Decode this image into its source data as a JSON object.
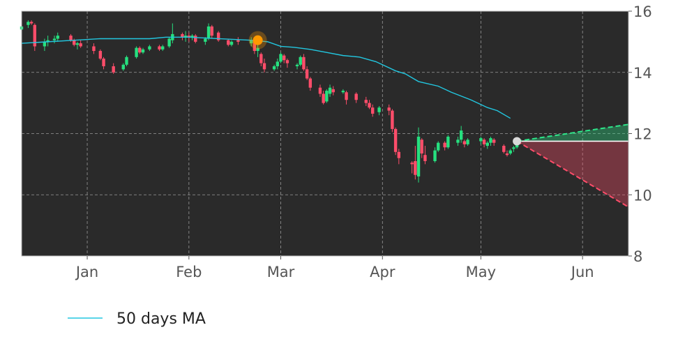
{
  "chart_data": {
    "type": "candlestick",
    "x_axis": {
      "type": "date",
      "ticks": [
        {
          "date": "2023-01-01",
          "label": "Jan"
        },
        {
          "date": "2023-02-01",
          "label": "Feb"
        },
        {
          "date": "2023-03-01",
          "label": "Mar"
        },
        {
          "date": "2023-04-01",
          "label": "Apr"
        },
        {
          "date": "2023-05-01",
          "label": "May"
        },
        {
          "date": "2023-06-01",
          "label": "Jun"
        }
      ],
      "range": [
        "2022-12-12",
        "2023-06-15"
      ]
    },
    "y_axis": {
      "position": "right",
      "range": [
        8,
        16
      ],
      "ticks": [
        8,
        10,
        12,
        14,
        16
      ]
    },
    "grid": true,
    "colors": {
      "background": "#2a2a2a",
      "up": "#26e07f",
      "down": "#ff4d6a",
      "ma_line": "#22c7e0",
      "grid": "#9a9a9a",
      "marker": "#ff9900",
      "last_point": "#d9d9d9",
      "forecast_up": "#2ee68a",
      "forecast_down": "#ff4d6a",
      "flat_line": "#ffffff"
    },
    "candles": [
      [
        "2022-12-12",
        15.4,
        15.55,
        15.35,
        15.5
      ],
      [
        "2022-12-14",
        15.55,
        15.7,
        15.45,
        15.65
      ],
      [
        "2022-12-15",
        15.65,
        15.7,
        15.55,
        15.6
      ],
      [
        "2022-12-16",
        15.55,
        15.6,
        14.7,
        14.85
      ],
      [
        "2022-12-19",
        14.85,
        15.1,
        14.7,
        15.0
      ],
      [
        "2022-12-20",
        15.0,
        15.2,
        14.85,
        15.05
      ],
      [
        "2022-12-22",
        15.05,
        15.2,
        14.95,
        15.1
      ],
      [
        "2022-12-23",
        15.1,
        15.3,
        15.0,
        15.2
      ],
      [
        "2022-12-27",
        15.2,
        15.25,
        15.0,
        15.05
      ],
      [
        "2022-12-28",
        15.05,
        15.1,
        14.85,
        14.9
      ],
      [
        "2022-12-29",
        14.9,
        15.0,
        14.75,
        14.95
      ],
      [
        "2022-12-30",
        14.95,
        15.05,
        14.8,
        14.85
      ],
      [
        "2023-01-03",
        14.85,
        14.95,
        14.6,
        14.7
      ],
      [
        "2023-01-05",
        14.7,
        14.75,
        14.4,
        14.45
      ],
      [
        "2023-01-06",
        14.45,
        14.5,
        14.1,
        14.2
      ],
      [
        "2023-01-09",
        14.2,
        14.3,
        13.95,
        14.0
      ],
      [
        "2023-01-12",
        14.1,
        14.3,
        14.05,
        14.25
      ],
      [
        "2023-01-13",
        14.25,
        14.55,
        14.2,
        14.5
      ],
      [
        "2023-01-16",
        14.5,
        14.85,
        14.45,
        14.8
      ],
      [
        "2023-01-17",
        14.8,
        14.85,
        14.6,
        14.65
      ],
      [
        "2023-01-18",
        14.65,
        14.8,
        14.6,
        14.75
      ],
      [
        "2023-01-20",
        14.75,
        14.9,
        14.7,
        14.85
      ],
      [
        "2023-01-23",
        14.85,
        14.9,
        14.7,
        14.75
      ],
      [
        "2023-01-24",
        14.75,
        14.9,
        14.7,
        14.85
      ],
      [
        "2023-01-26",
        14.85,
        15.15,
        14.8,
        15.1
      ],
      [
        "2023-01-27",
        15.05,
        15.6,
        14.95,
        15.25
      ],
      [
        "2023-01-30",
        15.25,
        15.3,
        15.05,
        15.15
      ],
      [
        "2023-01-31",
        15.15,
        15.35,
        15.0,
        15.2
      ],
      [
        "2023-02-01",
        15.2,
        15.3,
        15.0,
        15.15
      ],
      [
        "2023-02-02",
        15.15,
        15.25,
        15.05,
        15.2
      ],
      [
        "2023-02-03",
        15.2,
        15.25,
        14.95,
        15.0
      ],
      [
        "2023-02-06",
        15.0,
        15.15,
        14.9,
        15.1
      ],
      [
        "2023-02-07",
        15.1,
        15.6,
        15.05,
        15.5
      ],
      [
        "2023-02-08",
        15.5,
        15.55,
        15.1,
        15.2
      ],
      [
        "2023-02-10",
        15.3,
        15.35,
        15.0,
        15.05
      ],
      [
        "2023-02-13",
        15.05,
        15.1,
        14.85,
        14.9
      ],
      [
        "2023-02-14",
        14.9,
        15.05,
        14.85,
        15.0
      ],
      [
        "2023-02-16",
        15.05,
        15.15,
        14.9,
        15.0
      ],
      [
        "2023-02-20",
        14.95,
        15.15,
        14.85,
        15.05
      ],
      [
        "2023-02-21",
        15.05,
        15.1,
        14.6,
        14.7
      ],
      [
        "2023-02-22",
        14.7,
        14.9,
        14.5,
        14.8
      ],
      [
        "2023-02-23",
        14.6,
        14.65,
        14.2,
        14.3
      ],
      [
        "2023-02-24",
        14.3,
        14.45,
        14.0,
        14.1
      ],
      [
        "2023-02-27",
        14.1,
        14.25,
        14.05,
        14.2
      ],
      [
        "2023-02-28",
        14.2,
        14.45,
        14.1,
        14.35
      ],
      [
        "2023-03-01",
        14.35,
        14.65,
        14.3,
        14.6
      ],
      [
        "2023-03-02",
        14.55,
        14.6,
        14.3,
        14.4
      ],
      [
        "2023-03-03",
        14.4,
        14.45,
        14.15,
        14.3
      ],
      [
        "2023-03-06",
        14.2,
        14.3,
        14.1,
        14.25
      ],
      [
        "2023-03-07",
        14.25,
        14.55,
        14.2,
        14.5
      ],
      [
        "2023-03-08",
        14.5,
        14.6,
        14.05,
        14.1
      ],
      [
        "2023-03-09",
        14.1,
        14.2,
        13.75,
        13.8
      ],
      [
        "2023-03-10",
        13.8,
        13.85,
        13.4,
        13.5
      ],
      [
        "2023-03-13",
        13.5,
        13.6,
        13.2,
        13.3
      ],
      [
        "2023-03-14",
        13.3,
        13.4,
        12.95,
        13.0
      ],
      [
        "2023-03-15",
        13.05,
        13.45,
        13.0,
        13.4
      ],
      [
        "2023-03-16",
        13.3,
        13.6,
        13.2,
        13.5
      ],
      [
        "2023-03-17",
        13.45,
        13.55,
        13.25,
        13.35
      ],
      [
        "2023-03-20",
        13.35,
        13.45,
        13.3,
        13.4
      ],
      [
        "2023-03-21",
        13.35,
        13.4,
        12.95,
        13.1
      ],
      [
        "2023-03-24",
        13.3,
        13.35,
        13.0,
        13.1
      ],
      [
        "2023-03-27",
        13.1,
        13.2,
        12.9,
        13.0
      ],
      [
        "2023-03-28",
        13.0,
        13.1,
        12.8,
        12.85
      ],
      [
        "2023-03-29",
        12.85,
        12.95,
        12.55,
        12.65
      ],
      [
        "2023-03-31",
        12.7,
        12.9,
        12.6,
        12.85
      ],
      [
        "2023-04-03",
        12.85,
        12.95,
        12.6,
        12.75
      ],
      [
        "2023-04-04",
        12.75,
        12.8,
        12.05,
        12.15
      ],
      [
        "2023-04-05",
        12.15,
        12.2,
        11.3,
        11.4
      ],
      [
        "2023-04-06",
        11.4,
        11.5,
        11.0,
        11.2
      ],
      [
        "2023-04-10",
        11.05,
        11.1,
        10.7,
        11.0
      ],
      [
        "2023-04-11",
        11.1,
        11.6,
        10.5,
        10.65
      ],
      [
        "2023-04-12",
        10.6,
        12.2,
        10.4,
        11.9
      ],
      [
        "2023-04-13",
        11.8,
        11.85,
        11.2,
        11.35
      ],
      [
        "2023-04-14",
        11.3,
        11.6,
        11.0,
        11.1
      ],
      [
        "2023-04-17",
        11.1,
        11.55,
        11.05,
        11.45
      ],
      [
        "2023-04-18",
        11.45,
        11.75,
        11.4,
        11.7
      ],
      [
        "2023-04-20",
        11.7,
        11.75,
        11.45,
        11.55
      ],
      [
        "2023-04-21",
        11.55,
        11.95,
        11.5,
        11.9
      ],
      [
        "2023-04-24",
        11.7,
        11.9,
        11.6,
        11.8
      ],
      [
        "2023-04-25",
        11.8,
        12.25,
        11.7,
        12.1
      ],
      [
        "2023-04-26",
        11.75,
        11.8,
        11.55,
        11.65
      ],
      [
        "2023-04-27",
        11.65,
        11.85,
        11.6,
        11.8
      ],
      [
        "2023-05-01",
        11.75,
        11.9,
        11.65,
        11.85
      ],
      [
        "2023-05-02",
        11.8,
        11.85,
        11.55,
        11.65
      ],
      [
        "2023-05-03",
        11.6,
        11.75,
        11.5,
        11.7
      ],
      [
        "2023-05-04",
        11.7,
        11.9,
        11.6,
        11.85
      ],
      [
        "2023-05-05",
        11.8,
        11.85,
        11.6,
        11.7
      ],
      [
        "2023-05-08",
        11.6,
        11.65,
        11.35,
        11.4
      ],
      [
        "2023-05-09",
        11.35,
        11.45,
        11.25,
        11.3
      ],
      [
        "2023-05-10",
        11.35,
        11.5,
        11.3,
        11.45
      ],
      [
        "2023-05-11",
        11.5,
        11.6,
        11.4,
        11.55
      ],
      [
        "2023-05-12",
        11.55,
        11.75,
        11.5,
        11.7
      ]
    ],
    "ma_50": [
      [
        "2022-12-12",
        14.95
      ],
      [
        "2022-12-20",
        15.0
      ],
      [
        "2022-12-28",
        15.05
      ],
      [
        "2023-01-05",
        15.1
      ],
      [
        "2023-01-15",
        15.1
      ],
      [
        "2023-01-20",
        15.1
      ],
      [
        "2023-01-25",
        15.15
      ],
      [
        "2023-02-01",
        15.15
      ],
      [
        "2023-02-10",
        15.1
      ],
      [
        "2023-02-20",
        15.05
      ],
      [
        "2023-02-25",
        15.0
      ],
      [
        "2023-03-01",
        14.85
      ],
      [
        "2023-03-05",
        14.82
      ],
      [
        "2023-03-10",
        14.75
      ],
      [
        "2023-03-15",
        14.65
      ],
      [
        "2023-03-20",
        14.55
      ],
      [
        "2023-03-25",
        14.5
      ],
      [
        "2023-03-30",
        14.35
      ],
      [
        "2023-04-05",
        14.05
      ],
      [
        "2023-04-08",
        13.95
      ],
      [
        "2023-04-12",
        13.7
      ],
      [
        "2023-04-18",
        13.55
      ],
      [
        "2023-04-22",
        13.35
      ],
      [
        "2023-04-28",
        13.1
      ],
      [
        "2023-05-03",
        12.85
      ],
      [
        "2023-05-06",
        12.75
      ],
      [
        "2023-05-10",
        12.5
      ]
    ],
    "marker": {
      "date": "2023-02-22",
      "value": 15.05
    },
    "last_point": {
      "date": "2023-05-12",
      "value": 11.75
    },
    "forecast": {
      "start": {
        "date": "2023-05-12",
        "value": 11.75
      },
      "end_date": "2023-06-15",
      "upper_end": 12.3,
      "lower_end": 9.6,
      "flat": 11.75
    },
    "legend": {
      "placement": "bottom-left",
      "entries": [
        {
          "label": "50 days MA",
          "color": "#22c7e0"
        }
      ]
    }
  }
}
